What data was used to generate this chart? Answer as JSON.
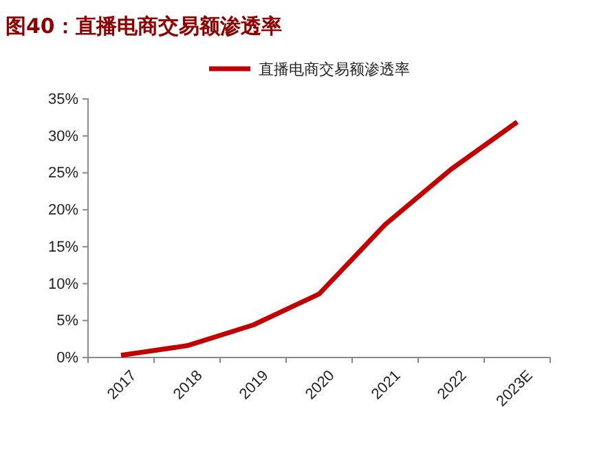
{
  "chart_data": {
    "type": "line",
    "title": "图40：直播电商交易额渗透率",
    "categories": [
      "2017",
      "2018",
      "2019",
      "2020",
      "2021",
      "2022",
      "2023E"
    ],
    "series": [
      {
        "name": "直播电商交易额渗透率",
        "color": "#c00000",
        "values": [
          0.3,
          1.6,
          4.4,
          8.6,
          18,
          25.5,
          31.9
        ]
      }
    ],
    "ylim": [
      0,
      35
    ],
    "yticks": [
      {
        "value": 0,
        "label": "0%"
      },
      {
        "value": 5,
        "label": "5%"
      },
      {
        "value": 10,
        "label": "10%"
      },
      {
        "value": 15,
        "label": "15%"
      },
      {
        "value": 20,
        "label": "20%"
      },
      {
        "value": 25,
        "label": "25%"
      },
      {
        "value": 30,
        "label": "30%"
      },
      {
        "value": 35,
        "label": "35%"
      }
    ],
    "legend": "top",
    "grid": false,
    "marker": "none",
    "line_style": "solid"
  }
}
